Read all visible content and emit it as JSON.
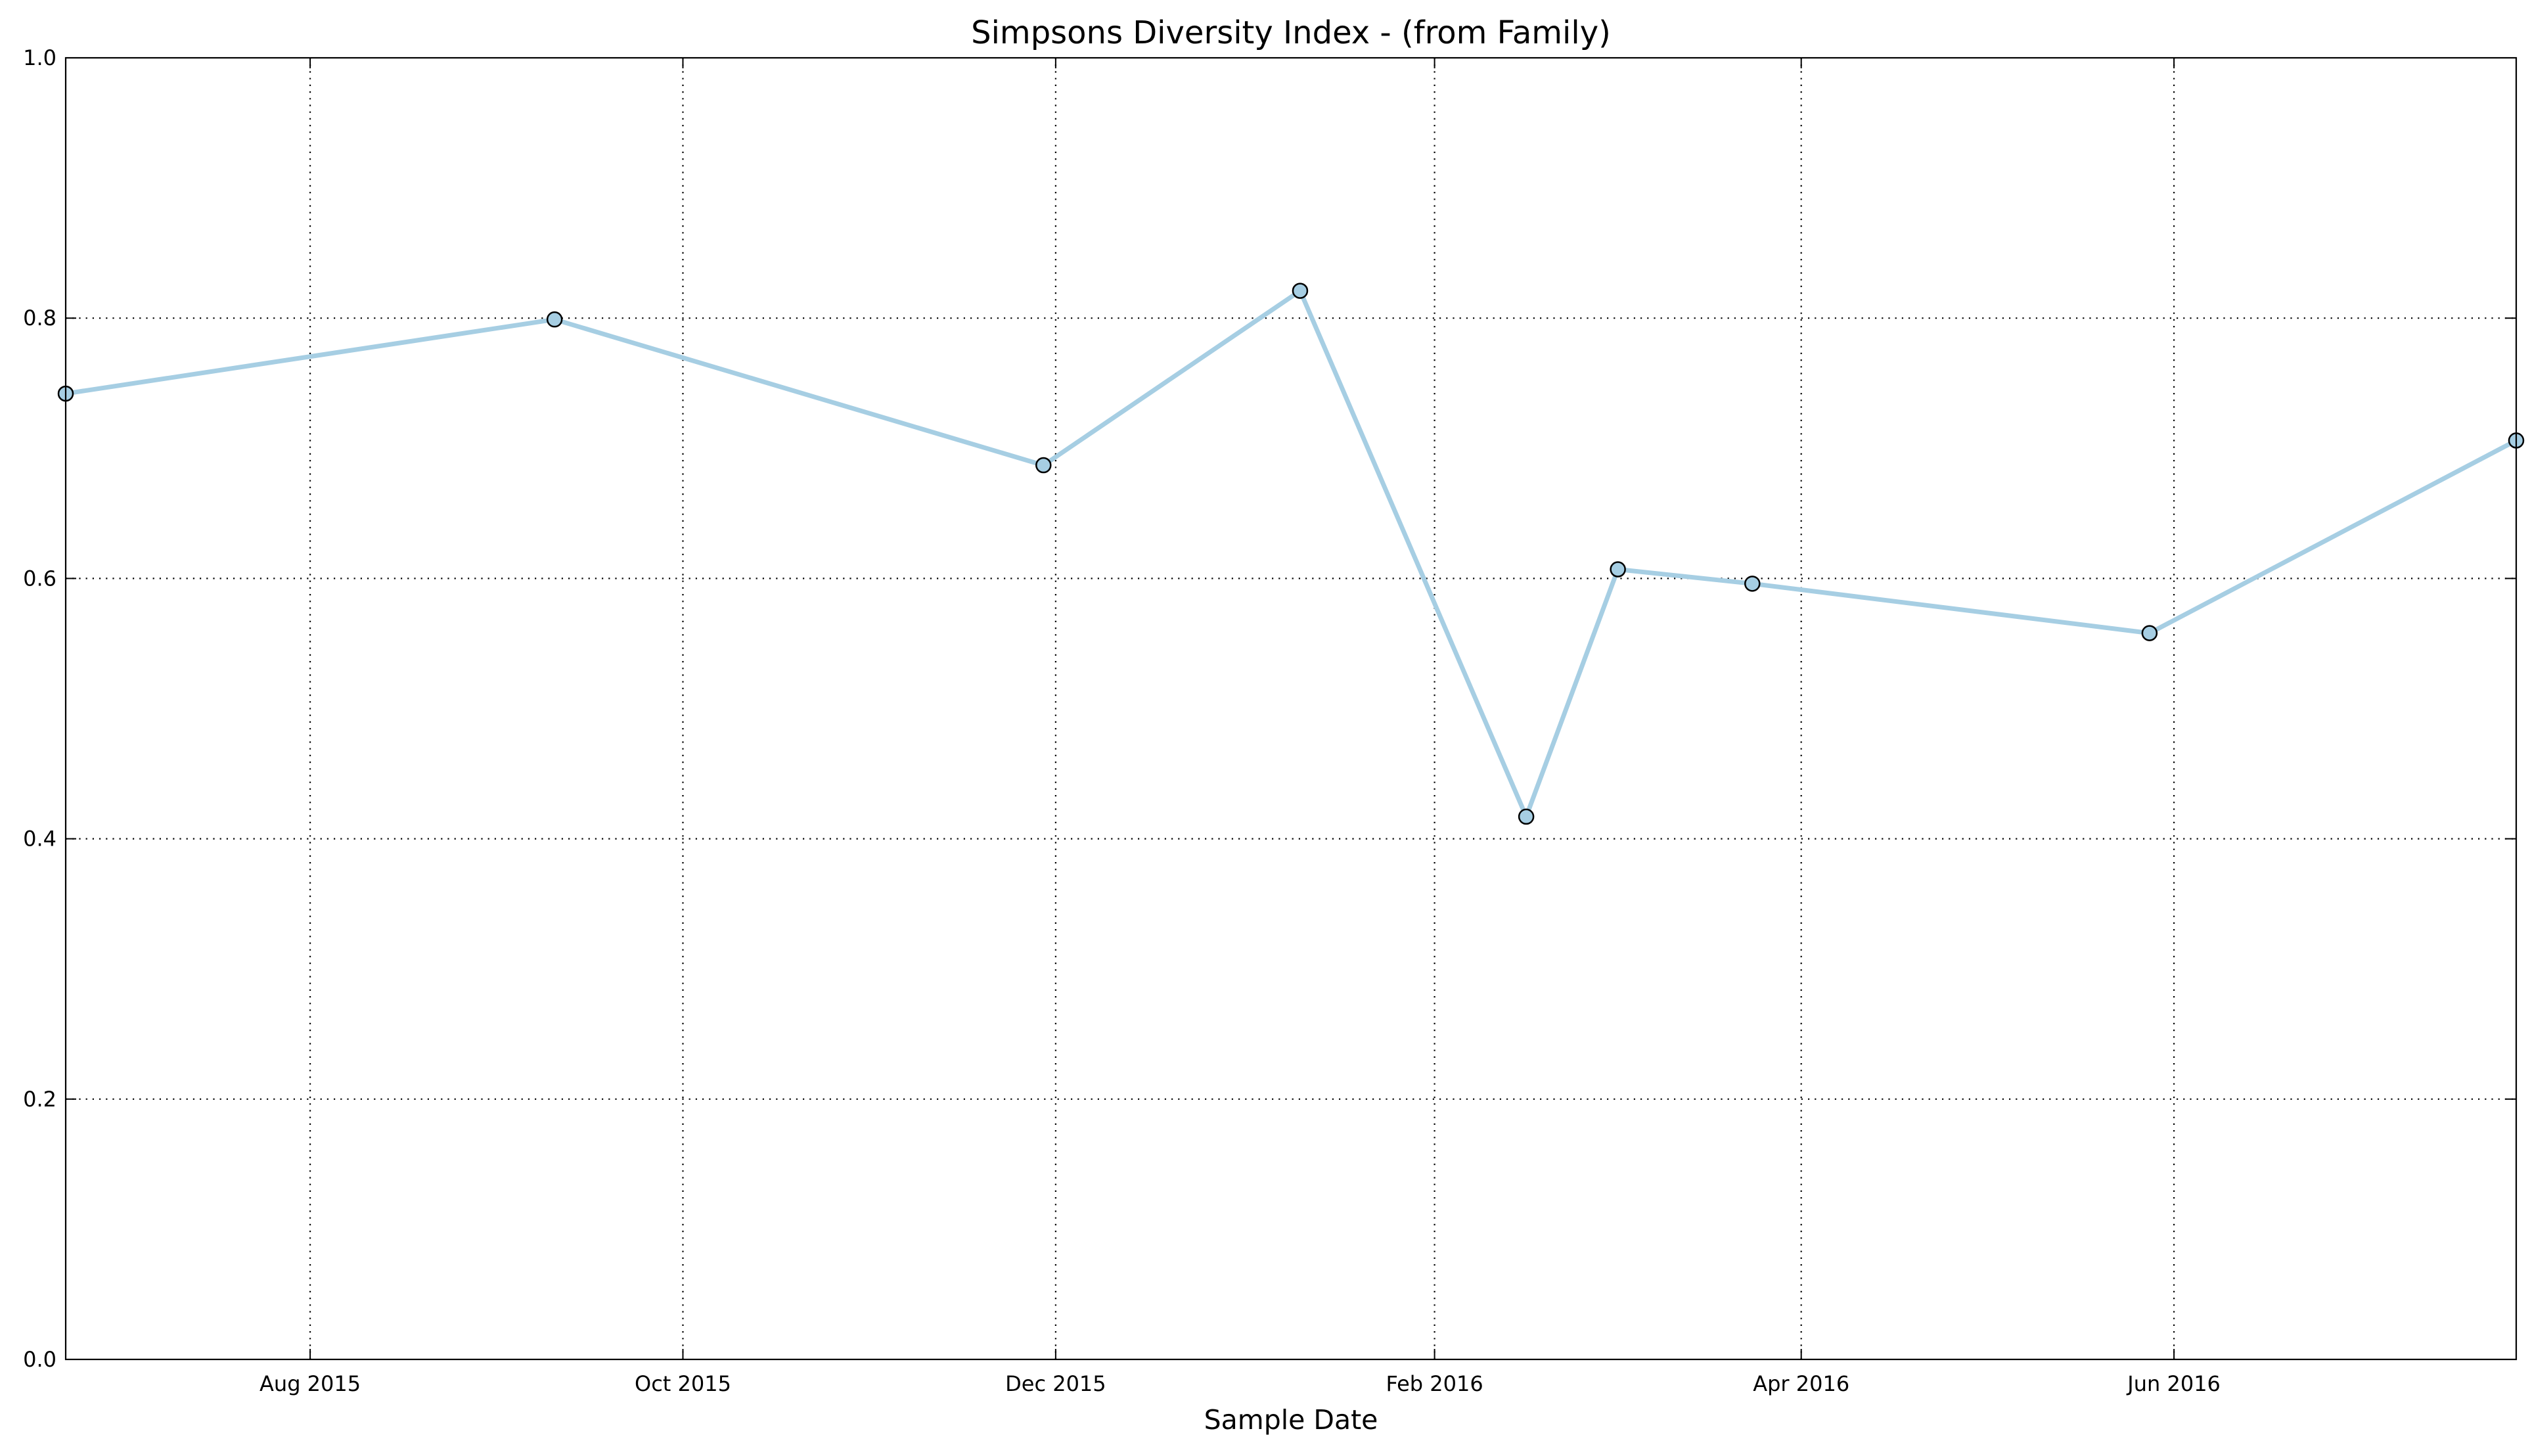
{
  "chart_data": {
    "type": "line",
    "title": "Simpsons Diversity Index - (from Family)",
    "xlabel": "Sample Date",
    "ylabel": "",
    "x_axis": {
      "type": "date",
      "range": [
        "2015-06-22",
        "2016-07-27"
      ],
      "ticks": [
        {
          "date": "2015-08-01",
          "label": "Aug 2015"
        },
        {
          "date": "2015-10-01",
          "label": "Oct 2015"
        },
        {
          "date": "2015-12-01",
          "label": "Dec 2015"
        },
        {
          "date": "2016-02-01",
          "label": "Feb 2016"
        },
        {
          "date": "2016-04-01",
          "label": "Apr 2016"
        },
        {
          "date": "2016-06-01",
          "label": "Jun 2016"
        }
      ]
    },
    "y_axis": {
      "range": [
        0.0,
        1.0
      ],
      "ticks": [
        {
          "value": 0.0,
          "label": "0.0"
        },
        {
          "value": 0.2,
          "label": "0.2"
        },
        {
          "value": 0.4,
          "label": "0.4"
        },
        {
          "value": 0.6,
          "label": "0.6"
        },
        {
          "value": 0.8,
          "label": "0.8"
        },
        {
          "value": 1.0,
          "label": "1.0"
        }
      ]
    },
    "grid": true,
    "legend": "none",
    "colors": {
      "line": "#a6cee3",
      "marker_fill": "#a6cee3",
      "marker_edge": "#000000",
      "grid": "#000000",
      "frame": "#000000"
    },
    "series": [
      {
        "points": [
          {
            "x": "2015-06-22",
            "y": 0.742
          },
          {
            "x": "2015-09-10",
            "y": 0.799
          },
          {
            "x": "2015-11-29",
            "y": 0.687
          },
          {
            "x": "2016-01-10",
            "y": 0.821
          },
          {
            "x": "2016-02-16",
            "y": 0.417
          },
          {
            "x": "2016-03-02",
            "y": 0.607
          },
          {
            "x": "2016-03-24",
            "y": 0.596
          },
          {
            "x": "2016-05-28",
            "y": 0.558
          },
          {
            "x": "2016-07-27",
            "y": 0.706
          }
        ]
      }
    ]
  }
}
